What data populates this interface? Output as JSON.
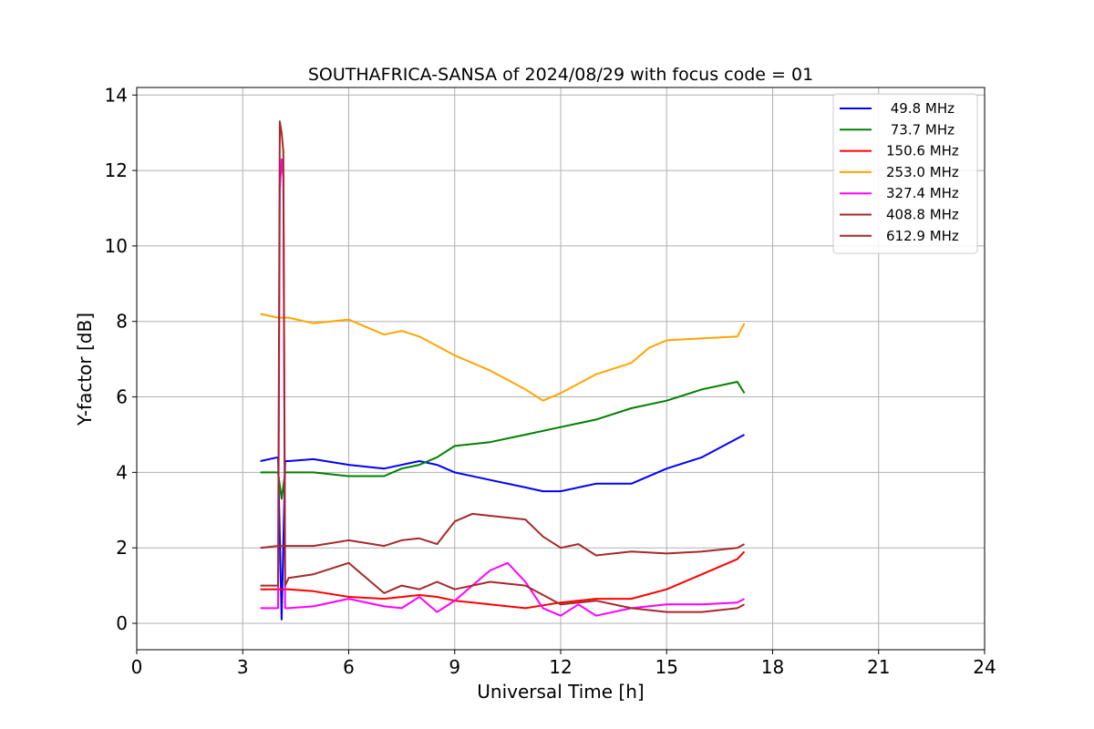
{
  "chart_data": {
    "type": "line",
    "title": "SOUTHAFRICA-SANSA of 2024/08/29 with focus code = 01",
    "xlabel": "Universal Time [h]",
    "ylabel": "Y-factor [dB]",
    "xlim": [
      0,
      24
    ],
    "ylim": [
      -0.7,
      14.2
    ],
    "x_ticks": [
      0,
      3,
      6,
      9,
      12,
      15,
      18,
      21,
      24
    ],
    "y_ticks": [
      0,
      2,
      4,
      6,
      8,
      10,
      12,
      14
    ],
    "grid": true,
    "legend_position": "top-right",
    "series": [
      {
        "name": " 49.8 MHz",
        "color": "#0000ff",
        "x": [
          3.5,
          4.0,
          4.1,
          4.2,
          4.3,
          5.0,
          6.0,
          7.0,
          8.0,
          8.5,
          9.0,
          10.0,
          11.0,
          11.5,
          12.0,
          13.0,
          14.0,
          15.0,
          16.0,
          17.0,
          17.2
        ],
        "y": [
          4.3,
          4.4,
          0.1,
          4.3,
          4.3,
          4.35,
          4.2,
          4.1,
          4.3,
          4.2,
          4.0,
          3.8,
          3.6,
          3.5,
          3.5,
          3.7,
          3.7,
          4.1,
          4.4,
          4.9,
          5.0
        ]
      },
      {
        "name": " 73.7 MHz",
        "color": "#008000",
        "x": [
          3.5,
          4.0,
          4.1,
          4.2,
          4.3,
          5.0,
          6.0,
          7.0,
          7.5,
          8.0,
          8.5,
          9.0,
          10.0,
          11.0,
          12.0,
          13.0,
          14.0,
          15.0,
          16.0,
          17.0,
          17.2
        ],
        "y": [
          4.0,
          4.0,
          3.3,
          4.0,
          4.0,
          4.0,
          3.9,
          3.9,
          4.1,
          4.2,
          4.4,
          4.7,
          4.8,
          5.0,
          5.2,
          5.4,
          5.7,
          5.9,
          6.2,
          6.4,
          6.1
        ]
      },
      {
        "name": "150.6 MHz",
        "color": "#ff0000",
        "x": [
          3.5,
          4.0,
          4.3,
          5.0,
          6.0,
          7.0,
          8.0,
          8.5,
          9.0,
          10.0,
          11.0,
          12.0,
          13.0,
          14.0,
          15.0,
          16.0,
          17.0,
          17.2
        ],
        "y": [
          0.9,
          0.9,
          0.9,
          0.85,
          0.7,
          0.65,
          0.75,
          0.7,
          0.6,
          0.5,
          0.4,
          0.55,
          0.65,
          0.65,
          0.9,
          1.3,
          1.7,
          1.9
        ]
      },
      {
        "name": "253.0 MHz",
        "color": "#ffa500",
        "x": [
          3.5,
          4.0,
          4.3,
          5.0,
          6.0,
          7.0,
          7.5,
          8.0,
          9.0,
          10.0,
          11.0,
          11.5,
          12.0,
          13.0,
          14.0,
          14.5,
          15.0,
          16.0,
          17.0,
          17.2
        ],
        "y": [
          8.2,
          8.1,
          8.1,
          7.95,
          8.05,
          7.65,
          7.75,
          7.6,
          7.1,
          6.7,
          6.2,
          5.9,
          6.1,
          6.6,
          6.9,
          7.3,
          7.5,
          7.55,
          7.6,
          7.95
        ]
      },
      {
        "name": "327.4 MHz",
        "color": "#ff00ff",
        "x": [
          3.5,
          4.0,
          4.05,
          4.1,
          4.15,
          4.2,
          4.3,
          5.0,
          6.0,
          7.0,
          7.5,
          8.0,
          8.5,
          9.0,
          10.0,
          10.5,
          11.0,
          11.5,
          12.0,
          12.5,
          13.0,
          14.0,
          15.0,
          16.0,
          17.0,
          17.2
        ],
        "y": [
          0.4,
          0.4,
          11.5,
          12.3,
          11.8,
          0.4,
          0.4,
          0.45,
          0.65,
          0.45,
          0.4,
          0.7,
          0.3,
          0.6,
          1.4,
          1.6,
          1.1,
          0.4,
          0.2,
          0.5,
          0.2,
          0.4,
          0.5,
          0.5,
          0.55,
          0.65
        ]
      },
      {
        "name": "408.8 MHz",
        "color": "#a52a2a",
        "x": [
          3.5,
          4.0,
          4.05,
          4.1,
          4.15,
          4.2,
          4.3,
          5.0,
          6.0,
          7.0,
          7.5,
          8.0,
          8.5,
          9.0,
          10.0,
          11.0,
          12.0,
          13.0,
          14.0,
          15.0,
          16.0,
          17.0,
          17.2
        ],
        "y": [
          1.0,
          1.0,
          13.3,
          13.0,
          12.5,
          1.0,
          1.2,
          1.3,
          1.6,
          0.8,
          1.0,
          0.9,
          1.1,
          0.9,
          1.1,
          1.0,
          0.5,
          0.6,
          0.4,
          0.3,
          0.3,
          0.4,
          0.5
        ]
      },
      {
        "name": "612.9 MHz",
        "color": "#a52a2a",
        "x": [
          3.5,
          4.0,
          4.3,
          5.0,
          6.0,
          7.0,
          7.5,
          8.0,
          8.5,
          9.0,
          9.5,
          10.0,
          11.0,
          11.5,
          12.0,
          12.5,
          13.0,
          14.0,
          15.0,
          16.0,
          17.0,
          17.2
        ],
        "y": [
          2.0,
          2.05,
          2.05,
          2.05,
          2.2,
          2.05,
          2.2,
          2.25,
          2.1,
          2.7,
          2.9,
          2.85,
          2.75,
          2.3,
          2.0,
          2.1,
          1.8,
          1.9,
          1.85,
          1.9,
          2.0,
          2.1
        ]
      }
    ]
  }
}
